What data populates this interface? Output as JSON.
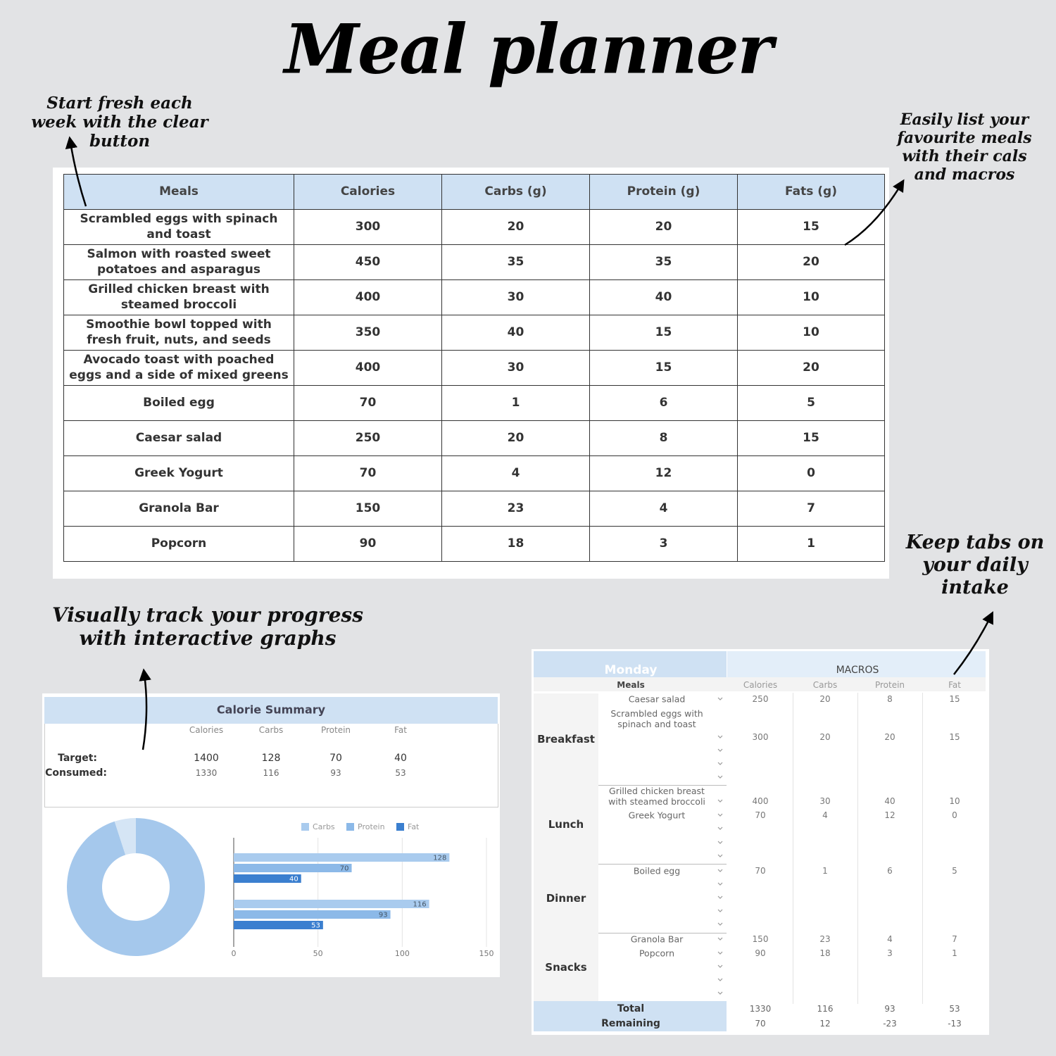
{
  "title": "Meal planner",
  "annotations": [
    "Start fresh each week with the clear button",
    "Easily list your favourite meals with their cals and macros",
    "Visually track your progress with interactive graphs",
    "Keep tabs on your daily intake"
  ],
  "meals_table": {
    "columns": [
      "Meals",
      "Calories",
      "Carbs (g)",
      "Protein (g)",
      "Fats (g)"
    ],
    "rows": [
      [
        "Scrambled eggs with spinach and toast",
        300,
        20,
        20,
        15
      ],
      [
        "Salmon with roasted sweet potatoes and asparagus",
        450,
        35,
        35,
        20
      ],
      [
        "Grilled chicken breast with steamed broccoli",
        400,
        30,
        40,
        10
      ],
      [
        "Smoothie bowl topped with fresh fruit, nuts, and seeds",
        350,
        40,
        15,
        10
      ],
      [
        "Avocado toast with poached eggs and a side of mixed greens",
        400,
        30,
        15,
        20
      ],
      [
        "Boiled egg",
        70,
        1,
        6,
        5
      ],
      [
        "Caesar salad",
        250,
        20,
        8,
        15
      ],
      [
        "Greek Yogurt",
        70,
        4,
        12,
        0
      ],
      [
        "Granola Bar",
        150,
        23,
        4,
        7
      ],
      [
        "Popcorn",
        90,
        18,
        3,
        1
      ]
    ]
  },
  "summary": {
    "title": "Calorie Summary",
    "columns": [
      "Calories",
      "Carbs",
      "Protein",
      "Fat"
    ],
    "rows": [
      {
        "label": "Target:",
        "values": [
          1400,
          128,
          70,
          40
        ]
      },
      {
        "label": "Consumed:",
        "values": [
          1330,
          116,
          93,
          53
        ]
      }
    ]
  },
  "chart_data": [
    {
      "type": "pie",
      "values": [
        1330,
        70
      ],
      "colors": [
        "#a5c8ec",
        "#d5e5f5"
      ],
      "donut": true
    },
    {
      "type": "hbar",
      "categories": [
        null,
        null
      ],
      "series": [
        {
          "name": "Carbs",
          "color": "#a9cbee",
          "values": [
            128,
            116
          ]
        },
        {
          "name": "Protein",
          "color": "#8cb9e8",
          "values": [
            70,
            93
          ]
        },
        {
          "name": "Fat",
          "color": "#3b7fcf",
          "values": [
            40,
            53
          ]
        }
      ],
      "xlim": [
        0,
        150
      ],
      "xticks": [
        0,
        50,
        100,
        150
      ],
      "grid": true,
      "legend": "top"
    }
  ],
  "day": {
    "day": "Monday",
    "group_header": "MACROS",
    "columns": [
      "Meals",
      "Calories",
      "Carbs",
      "Protein",
      "Fat"
    ],
    "sections": [
      {
        "name": "Breakfast",
        "rows": [
          {
            "meal": "Caesar salad",
            "values": [
              250,
              20,
              8,
              15
            ]
          },
          {
            "meal": "Scrambled eggs with spinach and toast",
            "values": [
              300,
              20,
              20,
              15
            ]
          }
        ]
      },
      {
        "name": "Lunch",
        "rows": [
          {
            "meal": "Grilled chicken breast with steamed broccoli",
            "values": [
              400,
              30,
              40,
              10
            ]
          },
          {
            "meal": "Greek Yogurt",
            "values": [
              70,
              4,
              12,
              0
            ]
          }
        ]
      },
      {
        "name": "Dinner",
        "rows": [
          {
            "meal": "Boiled egg",
            "values": [
              70,
              1,
              6,
              5
            ]
          }
        ]
      },
      {
        "name": "Snacks",
        "rows": [
          {
            "meal": "Granola Bar",
            "values": [
              150,
              23,
              4,
              7
            ]
          },
          {
            "meal": "Popcorn",
            "values": [
              90,
              18,
              3,
              1
            ]
          }
        ]
      }
    ],
    "total": {
      "label": "Total",
      "values": [
        1330,
        116,
        93,
        53
      ]
    },
    "remaining": {
      "label": "Remaining",
      "values": [
        70,
        12,
        -23,
        -13
      ]
    }
  }
}
